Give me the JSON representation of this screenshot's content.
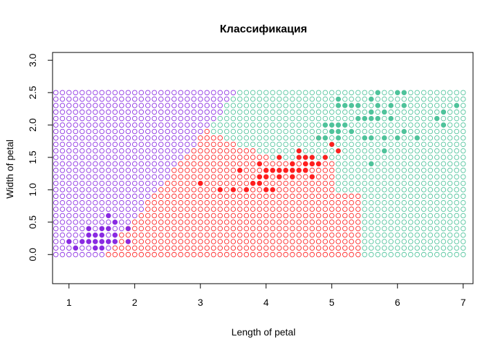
{
  "chart_data": {
    "type": "scatter",
    "title": "Классификация",
    "xlabel": "Length of petal",
    "ylabel": "Width of petal",
    "xlim": [
      0.75,
      7.15
    ],
    "ylim": [
      -0.45,
      3.12
    ],
    "x_ticks": [
      1,
      2,
      3,
      4,
      5,
      6,
      7
    ],
    "y_ticks": [
      0.0,
      0.5,
      1.0,
      1.5,
      2.0,
      2.5,
      3.0
    ],
    "x_tick_labels": [
      "1",
      "2",
      "3",
      "4",
      "5",
      "6",
      "7"
    ],
    "y_tick_labels": [
      "0.0",
      "0.5",
      "1.0",
      "1.5",
      "2.0",
      "2.5",
      "3.0"
    ],
    "grid": false,
    "legend": "none",
    "colors": {
      "class_1": "#8a2be2",
      "class_2": "#ff2020",
      "class_3": "#4fc39b"
    },
    "classification_map": {
      "x_range": [
        0.8,
        7.0
      ],
      "y_range": [
        0.0,
        2.5
      ],
      "step": 0.1,
      "marker": "open-circle"
    },
    "series": [
      {
        "class": "class_1",
        "marker": "filled-circle",
        "points": [
          [
            1.0,
            0.2
          ],
          [
            1.1,
            0.1
          ],
          [
            1.2,
            0.2
          ],
          [
            1.3,
            0.2
          ],
          [
            1.3,
            0.3
          ],
          [
            1.3,
            0.4
          ],
          [
            1.4,
            0.1
          ],
          [
            1.4,
            0.2
          ],
          [
            1.4,
            0.3
          ],
          [
            1.5,
            0.1
          ],
          [
            1.5,
            0.2
          ],
          [
            1.5,
            0.3
          ],
          [
            1.5,
            0.4
          ],
          [
            1.6,
            0.2
          ],
          [
            1.6,
            0.4
          ],
          [
            1.6,
            0.6
          ],
          [
            1.7,
            0.2
          ],
          [
            1.7,
            0.3
          ],
          [
            1.7,
            0.5
          ],
          [
            1.9,
            0.2
          ],
          [
            1.9,
            0.4
          ]
        ]
      },
      {
        "class": "class_2",
        "marker": "filled-circle",
        "points": [
          [
            3.0,
            1.1
          ],
          [
            3.3,
            1.0
          ],
          [
            3.5,
            1.0
          ],
          [
            3.6,
            1.3
          ],
          [
            3.7,
            1.0
          ],
          [
            3.8,
            1.1
          ],
          [
            3.9,
            1.1
          ],
          [
            3.9,
            1.2
          ],
          [
            3.9,
            1.4
          ],
          [
            4.0,
            1.0
          ],
          [
            4.0,
            1.2
          ],
          [
            4.0,
            1.3
          ],
          [
            4.1,
            1.0
          ],
          [
            4.1,
            1.3
          ],
          [
            4.2,
            1.2
          ],
          [
            4.2,
            1.3
          ],
          [
            4.2,
            1.5
          ],
          [
            4.3,
            1.3
          ],
          [
            4.4,
            1.2
          ],
          [
            4.4,
            1.3
          ],
          [
            4.4,
            1.4
          ],
          [
            4.5,
            1.3
          ],
          [
            4.5,
            1.5
          ],
          [
            4.5,
            1.6
          ],
          [
            4.6,
            1.3
          ],
          [
            4.6,
            1.4
          ],
          [
            4.6,
            1.5
          ],
          [
            4.7,
            1.2
          ],
          [
            4.7,
            1.4
          ],
          [
            4.7,
            1.5
          ],
          [
            4.8,
            1.4
          ],
          [
            4.8,
            1.8
          ],
          [
            4.9,
            1.5
          ],
          [
            5.0,
            1.7
          ],
          [
            5.1,
            1.6
          ]
        ]
      },
      {
        "class": "class_3",
        "marker": "filled-circle",
        "points": [
          [
            4.8,
            1.8
          ],
          [
            4.9,
            1.8
          ],
          [
            4.9,
            2.0
          ],
          [
            5.0,
            1.9
          ],
          [
            5.0,
            2.0
          ],
          [
            5.1,
            1.8
          ],
          [
            5.1,
            1.9
          ],
          [
            5.1,
            2.0
          ],
          [
            5.1,
            2.3
          ],
          [
            5.1,
            2.4
          ],
          [
            5.2,
            2.0
          ],
          [
            5.2,
            2.3
          ],
          [
            5.3,
            1.9
          ],
          [
            5.3,
            2.3
          ],
          [
            5.4,
            2.1
          ],
          [
            5.4,
            2.3
          ],
          [
            5.5,
            1.8
          ],
          [
            5.5,
            2.1
          ],
          [
            5.6,
            1.4
          ],
          [
            5.6,
            1.8
          ],
          [
            5.6,
            2.1
          ],
          [
            5.6,
            2.2
          ],
          [
            5.6,
            2.4
          ],
          [
            5.7,
            2.1
          ],
          [
            5.7,
            2.3
          ],
          [
            5.7,
            2.5
          ],
          [
            5.8,
            1.6
          ],
          [
            5.8,
            1.8
          ],
          [
            5.8,
            2.2
          ],
          [
            5.9,
            2.1
          ],
          [
            5.9,
            2.3
          ],
          [
            6.0,
            1.8
          ],
          [
            6.0,
            2.5
          ],
          [
            6.1,
            1.9
          ],
          [
            6.1,
            2.3
          ],
          [
            6.1,
            2.5
          ],
          [
            6.3,
            1.8
          ],
          [
            6.6,
            2.1
          ],
          [
            6.7,
            2.0
          ],
          [
            6.7,
            2.2
          ],
          [
            6.9,
            2.3
          ]
        ]
      }
    ]
  }
}
